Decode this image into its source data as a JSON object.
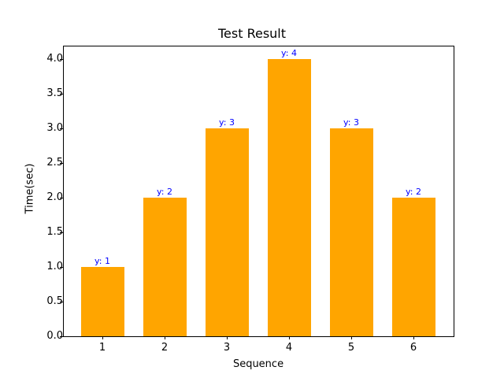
{
  "chart_data": {
    "type": "bar",
    "title": "Test Result",
    "xlabel": "Sequence",
    "ylabel": "Time(sec)",
    "categories": [
      "1",
      "2",
      "3",
      "4",
      "5",
      "6"
    ],
    "values": [
      1,
      2,
      3,
      4,
      3,
      2
    ],
    "bar_labels": [
      "y: 1",
      "y: 2",
      "y: 3",
      "y: 4",
      "y: 3",
      "y: 2"
    ],
    "ylim": [
      0,
      4.2
    ],
    "yticks": [
      "0.0",
      "0.5",
      "1.0",
      "1.5",
      "2.0",
      "2.5",
      "3.0",
      "3.5",
      "4.0"
    ],
    "grid": false,
    "bar_color": "#ffa500",
    "label_color": "#0000ff"
  }
}
